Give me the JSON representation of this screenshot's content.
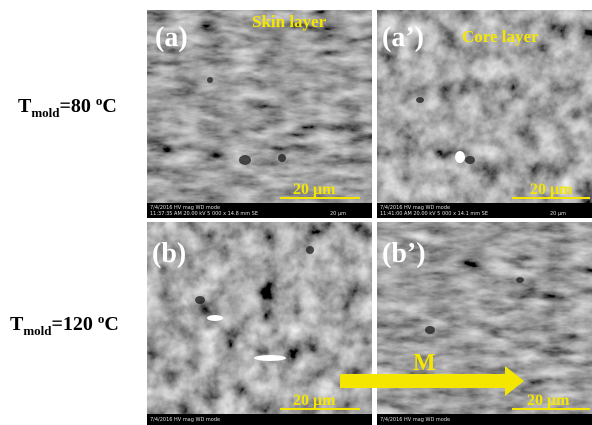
{
  "rows": [
    {
      "label": {
        "t": "T",
        "sub": "mold",
        "main": "=80 ",
        "sup": "o",
        "unit": "C"
      }
    },
    {
      "label": {
        "t": "T",
        "sub": "mold",
        "main": "=120 ",
        "sup": "o",
        "unit": "C"
      }
    }
  ],
  "panels": [
    {
      "label": "(a)",
      "title": "Skin layer",
      "scale": "20 μm",
      "info": [
        "7/4/2016   HV   mag   WD   mode",
        "11:37:35 AM 20.00 kV 5 000 x 14.8 mm SE",
        "20 μm"
      ]
    },
    {
      "label": "(a’)",
      "title": "Core layer",
      "scale": "20 μm",
      "info": [
        "7/4/2016   HV   mag   WD   mode",
        "11:41:00 AM 20.00 kV 5 000 x 14.1 mm SE",
        "20 μm"
      ]
    },
    {
      "label": "(b)",
      "scale": "20 μm",
      "info": [
        "7/4/2016   HV   mag   WD   mode"
      ]
    },
    {
      "label": "(b’)",
      "scale": "20 μm",
      "info": [
        "7/4/2016   HV   mag   WD   mode"
      ]
    }
  ],
  "arrow_label": "M"
}
